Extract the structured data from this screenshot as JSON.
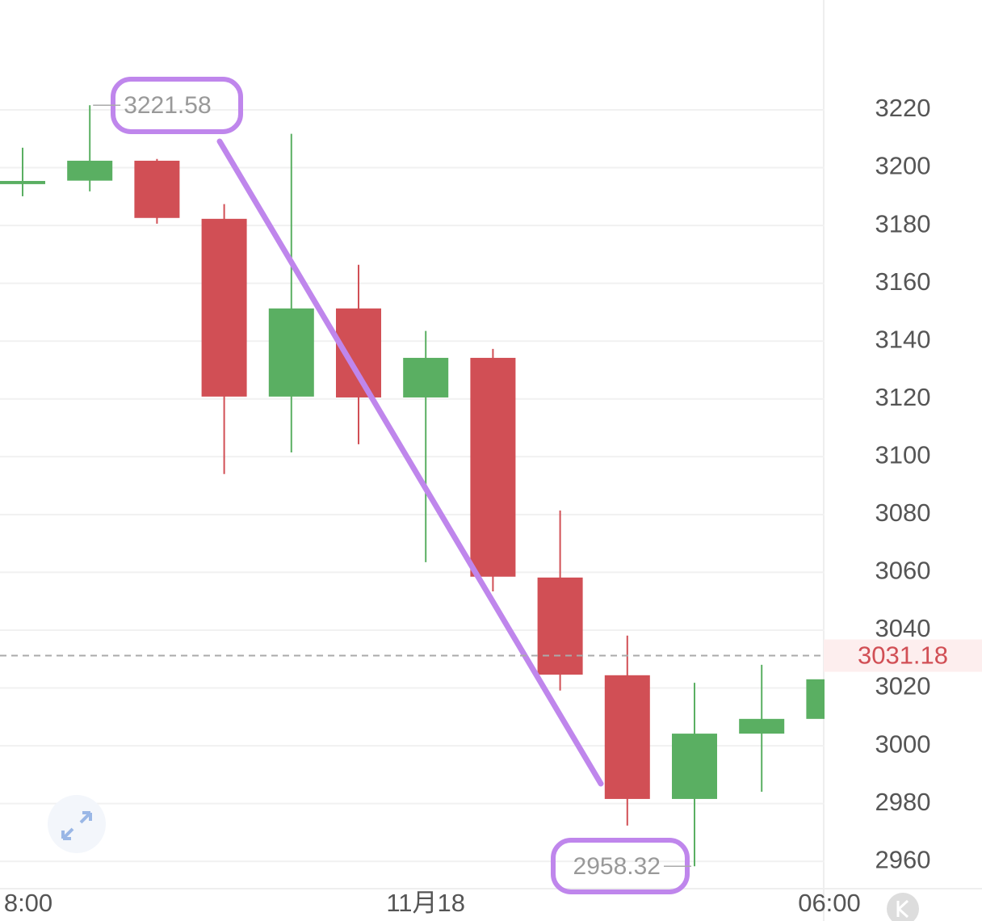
{
  "chart_data": {
    "type": "candlestick",
    "categories": [
      "8:00",
      null,
      null,
      null,
      null,
      null,
      "11月18",
      null,
      null,
      null,
      null,
      null,
      "06:00"
    ],
    "open": [
      3194.3,
      3195.5,
      3202.4,
      3182.3,
      3120.8,
      3151.3,
      3120.5,
      3134.2,
      3058.2,
      3024.4,
      2981.6,
      3004.2,
      3009.3
    ],
    "high": [
      3206.9,
      3221.58,
      3203.0,
      3187.4,
      3211.7,
      3166.4,
      3143.5,
      3137.3,
      3081.4,
      3038.1,
      3021.8,
      3028.0,
      3023.0
    ],
    "low": [
      3190.1,
      3191.8,
      3180.6,
      3094.0,
      3101.5,
      3104.3,
      3063.5,
      3053.4,
      3019.1,
      2972.4,
      2958.32,
      2984.1,
      3009.3
    ],
    "close": [
      3195.4,
      3202.4,
      3182.6,
      3120.8,
      3151.3,
      3120.5,
      3134.2,
      3058.5,
      3024.6,
      2981.6,
      3004.2,
      3009.3,
      3023.0
    ],
    "up_color": "#5aaf62",
    "down_color": "#d14f55",
    "ylim": [
      2950,
      3258
    ],
    "yticks": [
      2960,
      2980,
      3000,
      3020,
      3040,
      3060,
      3080,
      3100,
      3120,
      3140,
      3160,
      3180,
      3200,
      3220
    ],
    "grid": true,
    "high_label": "3221.58",
    "low_label": "2958.32",
    "last_price": 3031.18
  }
}
